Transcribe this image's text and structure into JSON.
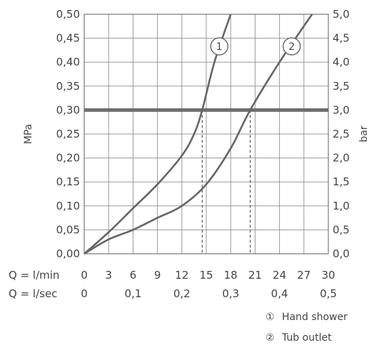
{
  "chart_data": {
    "type": "line",
    "ylabel_left": "MPa",
    "ylabel_right": "bar",
    "y_left_ticks": [
      "0,00",
      "0,05",
      "0,10",
      "0,15",
      "0,20",
      "0,25",
      "0,30",
      "0,35",
      "0,40",
      "0,45",
      "0,50"
    ],
    "y_right_ticks": [
      "0,0",
      "0,5",
      "1,0",
      "1,5",
      "2,0",
      "2,5",
      "3,0",
      "3,5",
      "4,0",
      "4,5",
      "5,0"
    ],
    "ylim": [
      0,
      0.5
    ],
    "xlim": [
      0,
      30
    ],
    "x_row1_label": "Q = l/min",
    "x_row1_ticks": [
      "0",
      "3",
      "6",
      "9",
      "12",
      "15",
      "18",
      "21",
      "24",
      "27",
      "30"
    ],
    "x_row2_label": "Q = l/sec",
    "x_row2_ticks": [
      "0",
      "0,1",
      "0,2",
      "0,3",
      "0,4",
      "0,5"
    ],
    "reference_pressure": 0.3,
    "grid": true,
    "series": [
      {
        "marker": "1",
        "name": "Hand shower",
        "x": [
          0,
          3,
          6,
          9,
          12,
          13.5,
          14.5,
          16,
          18
        ],
        "y": [
          0,
          0.045,
          0.095,
          0.145,
          0.205,
          0.25,
          0.3,
          0.4,
          0.5
        ]
      },
      {
        "marker": "2",
        "name": "Tub outlet",
        "x": [
          0,
          3,
          6,
          9,
          12,
          15,
          18,
          20.4,
          24,
          28
        ],
        "y": [
          0,
          0.03,
          0.05,
          0.075,
          0.1,
          0.145,
          0.22,
          0.3,
          0.4,
          0.5
        ]
      }
    ],
    "crossings_x": [
      14.5,
      20.4
    ],
    "legend_position": "bottom-right"
  },
  "legend": [
    {
      "symbol": "①",
      "label": "Hand shower"
    },
    {
      "symbol": "②",
      "label": "Tub outlet"
    }
  ]
}
